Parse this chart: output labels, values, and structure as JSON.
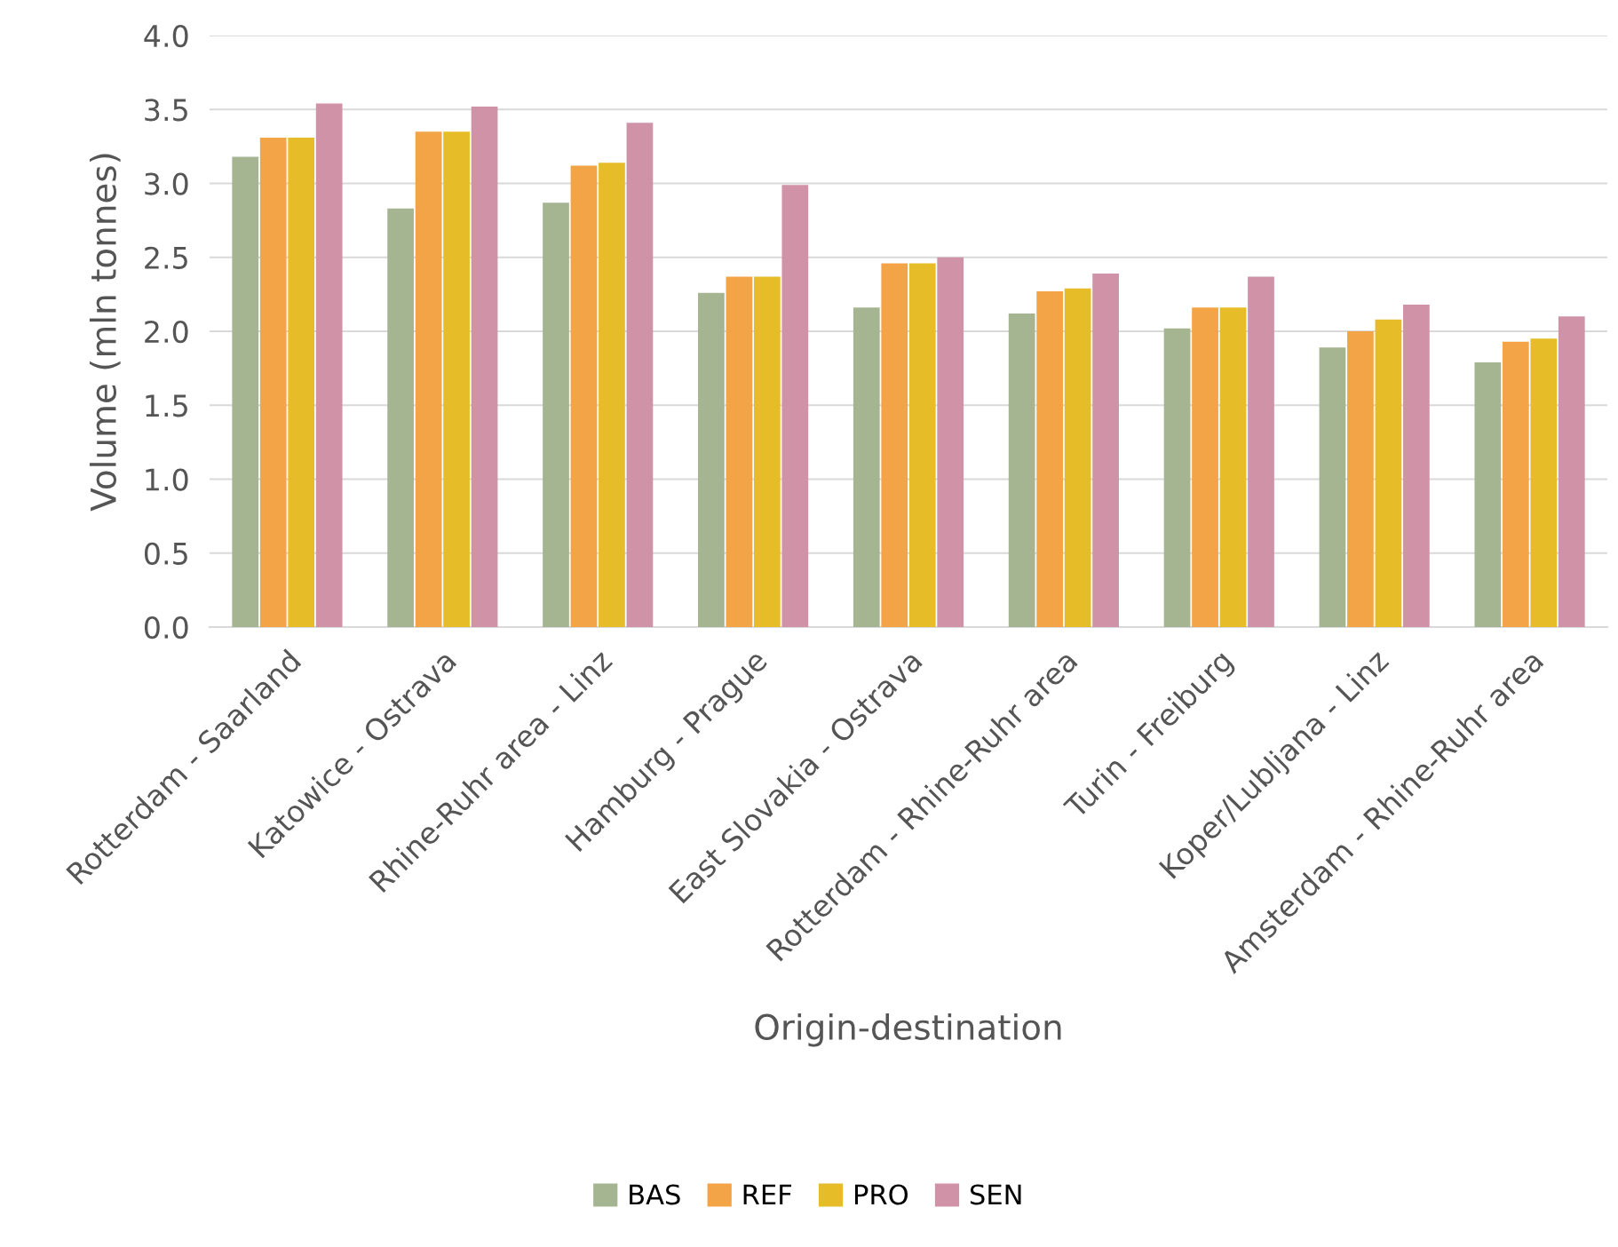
{
  "chart_data": {
    "type": "bar",
    "xlabel": "Origin-destination",
    "ylabel": "Volume (mln tonnes)",
    "categories": [
      "Rotterdam - Saarland",
      "Katowice - Ostrava",
      "Rhine-Ruhr area - Linz",
      "Hamburg - Prague",
      "East Slovakia - Ostrava",
      "Rotterdam - Rhine-Ruhr area",
      "Turin - Freiburg",
      "Koper/Lubljana - Linz",
      "Amsterdam - Rhine-Ruhr area"
    ],
    "series": [
      {
        "name": "BAS",
        "color": "#a5b592",
        "values": [
          3.18,
          2.83,
          2.87,
          2.26,
          2.16,
          2.12,
          2.02,
          1.89,
          1.79
        ]
      },
      {
        "name": "REF",
        "color": "#f3a447",
        "values": [
          3.31,
          3.35,
          3.12,
          2.37,
          2.46,
          2.27,
          2.16,
          2.0,
          1.93
        ]
      },
      {
        "name": "PRO",
        "color": "#e7bc29",
        "values": [
          3.31,
          3.35,
          3.14,
          2.37,
          2.46,
          2.29,
          2.16,
          2.08,
          1.95
        ]
      },
      {
        "name": "SEN",
        "color": "#d092a7",
        "values": [
          3.54,
          3.52,
          3.41,
          2.99,
          2.5,
          2.39,
          2.37,
          2.18,
          2.1
        ]
      }
    ],
    "ylim": [
      0,
      4
    ],
    "yticks": [
      {
        "value": 0,
        "label": "0.0"
      },
      {
        "value": 0.5,
        "label": "0.5"
      },
      {
        "value": 1,
        "label": "1.0"
      },
      {
        "value": 1.5,
        "label": "1.5"
      },
      {
        "value": 2,
        "label": "2.0"
      },
      {
        "value": 2.5,
        "label": "2.5"
      },
      {
        "value": 3,
        "label": "3.0"
      },
      {
        "value": 3.5,
        "label": "3.5"
      },
      {
        "value": 4,
        "label": "4.0"
      }
    ],
    "grid": "y",
    "legend": "bottom"
  }
}
